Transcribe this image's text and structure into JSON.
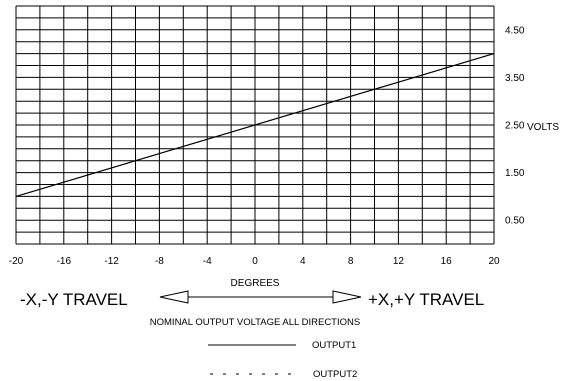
{
  "chart_data": {
    "type": "line",
    "x": [
      -20,
      20
    ],
    "xlim": [
      -20,
      20
    ],
    "ylim": [
      0,
      5
    ],
    "x_ticks": [
      "-20",
      "-16",
      "-12",
      "-8",
      "-4",
      "0",
      "4",
      "8",
      "12",
      "16",
      "20"
    ],
    "y_ticks": [
      "0.50",
      "1.50",
      "2.50",
      "3.50",
      "4.50"
    ],
    "y_tick_values": [
      0.5,
      1.5,
      2.5,
      3.5,
      4.5
    ],
    "y_unit": "VOLTS",
    "xlabel": "DEGREES",
    "grid": true,
    "series": [
      {
        "name": "OUTPUT1",
        "x": [
          -20,
          20
        ],
        "values": [
          1.0,
          4.0
        ],
        "style": "solid"
      }
    ],
    "annotations": {
      "left_travel": "-X,-Y TRAVEL",
      "right_travel": "+X,+Y TRAVEL",
      "caption": "NOMINAL OUTPUT VOLTAGE ALL DIRECTIONS"
    },
    "legend": {
      "placement": "bottom-center",
      "items": [
        {
          "label": "OUTPUT1",
          "style": "solid"
        },
        {
          "label": "OUTPUT2",
          "style": "dashed"
        }
      ]
    }
  }
}
